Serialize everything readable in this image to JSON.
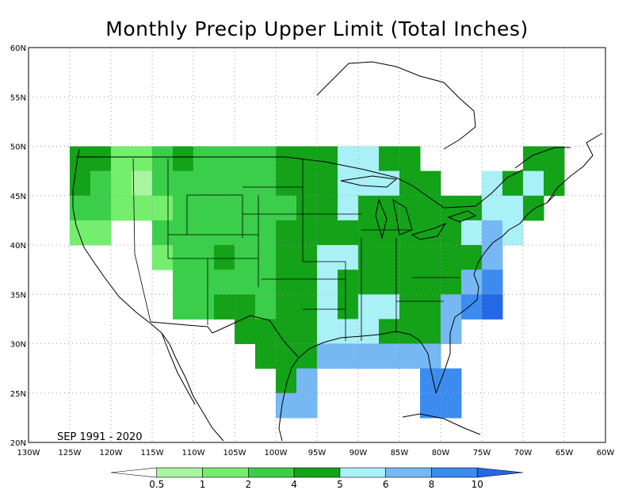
{
  "title": "Monthly Precip Upper Limit (Total Inches)",
  "period": "SEP 1991 - 2020",
  "map": {
    "lon_range": [
      -130,
      -60
    ],
    "lat_range": [
      20,
      60
    ],
    "lon_ticks": [
      "130W",
      "125W",
      "120W",
      "115W",
      "110W",
      "105W",
      "100W",
      "95W",
      "90W",
      "85W",
      "80W",
      "75W",
      "70W",
      "65W",
      "60W"
    ],
    "lat_ticks": [
      "20N",
      "25N",
      "30N",
      "35N",
      "40N",
      "45N",
      "50N",
      "55N",
      "60N"
    ],
    "grid": true,
    "grid_step_deg": 5,
    "cell_size_deg": 2.5
  },
  "legend": {
    "labels": [
      "0.5",
      "1",
      "2",
      "4",
      "5",
      "6",
      "8",
      "10"
    ],
    "colors": [
      "#ffffff",
      "#aaf5a0",
      "#75ee6e",
      "#3bce4a",
      "#13a218",
      "#aaf0f7",
      "#76b8f4",
      "#3c8cf0",
      "#2468e6"
    ],
    "thresholds": [
      0.5,
      1,
      2,
      4,
      5,
      6,
      8,
      10
    ]
  },
  "colors": {
    "lt05": "#ffffff",
    "c1": "#aaf5a0",
    "c2": "#75ee6e",
    "c4": "#3bce4a",
    "c5": "#13a218",
    "c6": "#aaf0f7",
    "c8": "#76b8f4",
    "c10": "#3c8cf0",
    "gt10": "#2468e6"
  },
  "chart_data": {
    "type": "heatmap",
    "title": "Monthly Precip Upper Limit (Total Inches)",
    "x_axis": "longitude",
    "y_axis": "latitude",
    "xlim": [
      -130,
      -60
    ],
    "ylim": [
      20,
      60
    ],
    "cell_deg": 2.5,
    "levels": [
      0.5,
      1,
      2,
      4,
      5,
      6,
      8,
      10
    ],
    "lon_starts": [
      -125,
      -122.5,
      -120,
      -117.5,
      -115,
      -112.5,
      -110,
      -107.5,
      -105,
      -102.5,
      -100,
      -97.5,
      -95,
      -92.5,
      -90,
      -87.5,
      -85,
      -82.5,
      -80,
      -77.5,
      -75,
      -72.5,
      -70,
      -67.5
    ],
    "rows": [
      {
        "lat_south": 47.5,
        "values": [
          4,
          4,
          1,
          1,
          2,
          4,
          2,
          2,
          2,
          2,
          4,
          4,
          4,
          5,
          5,
          4,
          4,
          null,
          null,
          null,
          null,
          null,
          4,
          4
        ]
      },
      {
        "lat_south": 45.0,
        "values": [
          4,
          2,
          1,
          0.5,
          2,
          2,
          2,
          2,
          2,
          2,
          4,
          4,
          4,
          5,
          5,
          5,
          4,
          4,
          null,
          null,
          5,
          4,
          5,
          4
        ]
      },
      {
        "lat_south": 42.5,
        "values": [
          2,
          2,
          1,
          1,
          1,
          2,
          2,
          2,
          2,
          2,
          2,
          4,
          4,
          5,
          4,
          4,
          4,
          4,
          4,
          4,
          5,
          5,
          4,
          null
        ]
      },
      {
        "lat_south": 40.0,
        "values": [
          1,
          1,
          null,
          null,
          2,
          2,
          2,
          2,
          2,
          2,
          4,
          4,
          4,
          4,
          4,
          4,
          4,
          4,
          4,
          5,
          6,
          5,
          null,
          null
        ]
      },
      {
        "lat_south": 37.5,
        "values": [
          null,
          null,
          null,
          null,
          1,
          2,
          2,
          4,
          2,
          2,
          4,
          4,
          5,
          5,
          4,
          4,
          4,
          4,
          4,
          4,
          6,
          null,
          null,
          null
        ]
      },
      {
        "lat_south": 35.0,
        "values": [
          null,
          null,
          null,
          null,
          null,
          2,
          2,
          2,
          2,
          2,
          4,
          4,
          5,
          4,
          4,
          4,
          4,
          4,
          4,
          6,
          8,
          null,
          null,
          null
        ]
      },
      {
        "lat_south": 32.5,
        "values": [
          null,
          null,
          null,
          null,
          null,
          2,
          2,
          4,
          4,
          2,
          4,
          4,
          5,
          4,
          5,
          5,
          4,
          4,
          6,
          8,
          10,
          null,
          null,
          null
        ]
      },
      {
        "lat_south": 30.0,
        "values": [
          null,
          null,
          null,
          null,
          null,
          null,
          null,
          null,
          4,
          4,
          4,
          4,
          5,
          5,
          5,
          4,
          4,
          4,
          6,
          null,
          null,
          null,
          null,
          null
        ]
      },
      {
        "lat_south": 27.5,
        "values": [
          null,
          null,
          null,
          null,
          null,
          null,
          null,
          null,
          null,
          4,
          4,
          4,
          6,
          6,
          6,
          6,
          6,
          6,
          null,
          null,
          null,
          null,
          null,
          null
        ]
      },
      {
        "lat_south": 25.0,
        "values": [
          null,
          null,
          null,
          null,
          null,
          null,
          null,
          null,
          null,
          null,
          4,
          6,
          null,
          null,
          null,
          null,
          null,
          8,
          8,
          null,
          null,
          null,
          null,
          null
        ]
      },
      {
        "lat_south": 22.5,
        "values": [
          null,
          null,
          null,
          null,
          null,
          null,
          null,
          null,
          null,
          null,
          6,
          6,
          null,
          null,
          null,
          null,
          null,
          8,
          8,
          null,
          null,
          null,
          null,
          null
        ]
      }
    ]
  }
}
